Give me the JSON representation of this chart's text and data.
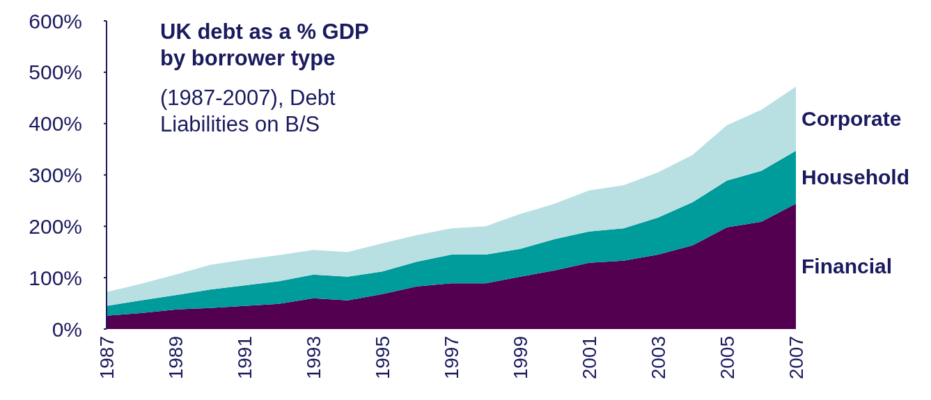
{
  "chart_data": {
    "type": "area",
    "stacked": true,
    "title": "UK debt as a % GDP by borrower type",
    "subtitle": "(1987-2007), Debt Liabilities on B/S",
    "x": [
      1987,
      1988,
      1989,
      1990,
      1991,
      1992,
      1993,
      1994,
      1995,
      1996,
      1997,
      1998,
      1999,
      2000,
      2001,
      2002,
      2003,
      2004,
      2005,
      2006,
      2007
    ],
    "series": [
      {
        "name": "Financial",
        "color": "#52004f",
        "values": [
          26,
          31,
          38,
          41,
          45,
          49,
          60,
          56,
          68,
          83,
          89,
          89,
          102,
          114,
          129,
          133,
          145,
          163,
          198,
          209,
          244
        ]
      },
      {
        "name": "Household",
        "color": "#009b9b",
        "values": [
          19,
          25,
          28,
          36,
          40,
          44,
          46,
          46,
          44,
          48,
          56,
          56,
          54,
          61,
          61,
          63,
          72,
          84,
          91,
          99,
          103
        ]
      },
      {
        "name": "Corporate",
        "color": "#b8e0e3",
        "values": [
          27,
          32,
          40,
          48,
          50,
          51,
          48,
          48,
          55,
          52,
          51,
          55,
          68,
          69,
          80,
          84,
          88,
          92,
          108,
          119,
          125
        ]
      }
    ],
    "xlim": [
      1987,
      2007
    ],
    "xticks": [
      1987,
      1989,
      1991,
      1993,
      1995,
      1997,
      1999,
      2001,
      2003,
      2005,
      2007
    ],
    "ylim": [
      0,
      600
    ],
    "yticks": [
      {
        "value": 0,
        "label": "0%"
      },
      {
        "value": 100,
        "label": "100%"
      },
      {
        "value": 200,
        "label": "200%"
      },
      {
        "value": 300,
        "label": "300%"
      },
      {
        "value": 400,
        "label": "400%"
      },
      {
        "value": 500,
        "label": "500%"
      },
      {
        "value": 600,
        "label": "600%"
      }
    ],
    "grid": false
  }
}
